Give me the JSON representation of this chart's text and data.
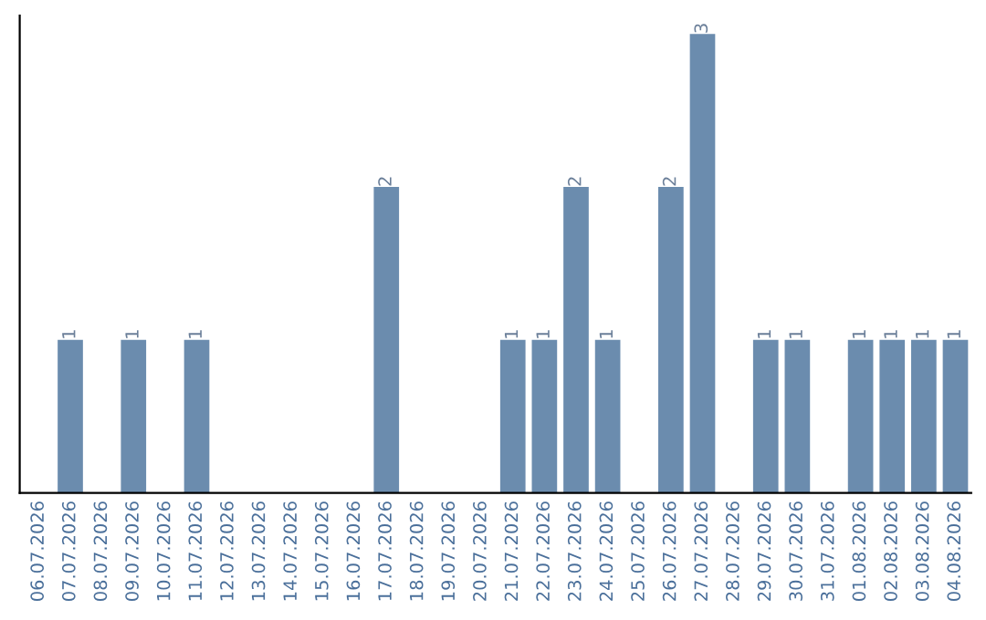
{
  "chart_data": {
    "type": "bar",
    "categories": [
      "06.07.2026",
      "07.07.2026",
      "08.07.2026",
      "09.07.2026",
      "10.07.2026",
      "11.07.2026",
      "12.07.2026",
      "13.07.2026",
      "14.07.2026",
      "15.07.2026",
      "16.07.2026",
      "17.07.2026",
      "18.07.2026",
      "19.07.2026",
      "20.07.2026",
      "21.07.2026",
      "22.07.2026",
      "23.07.2026",
      "24.07.2026",
      "25.07.2026",
      "26.07.2026",
      "27.07.2026",
      "28.07.2026",
      "29.07.2026",
      "30.07.2026",
      "31.07.2026",
      "01.08.2026",
      "02.08.2026",
      "03.08.2026",
      "04.08.2026"
    ],
    "values": [
      0,
      1,
      0,
      1,
      0,
      1,
      0,
      0,
      0,
      0,
      0,
      2,
      0,
      0,
      0,
      1,
      1,
      2,
      1,
      0,
      2,
      3,
      0,
      1,
      1,
      0,
      1,
      1,
      1,
      1
    ],
    "value_labels": [
      null,
      "1",
      null,
      "1",
      null,
      "1",
      null,
      null,
      null,
      null,
      null,
      "2",
      null,
      null,
      null,
      "1",
      "1",
      "2",
      "1",
      null,
      "2",
      "3",
      null,
      "1",
      "1",
      null,
      "1",
      "1",
      "1",
      "1"
    ],
    "color": "#6b8cae",
    "grid": false,
    "legend": false
  }
}
